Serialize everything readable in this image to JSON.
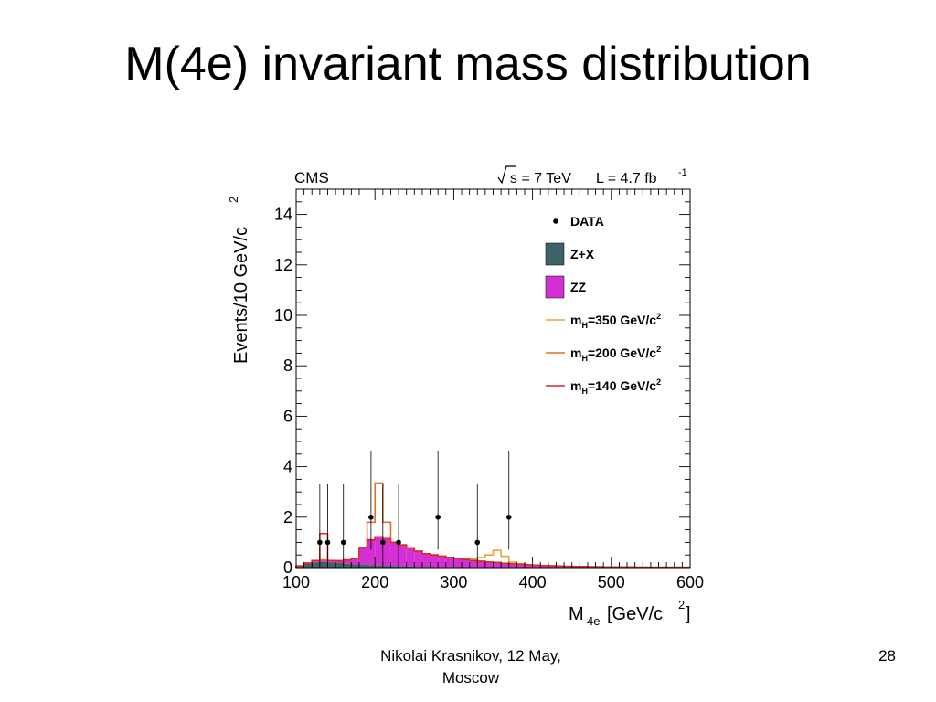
{
  "slide": {
    "title": "M(4e) invariant mass distribution",
    "footer_author_line1": "Nikolai Krasnikov, 12 May,",
    "footer_author_line2": "Moscow",
    "page_number": "28"
  },
  "chart_data": {
    "type": "bar",
    "experiment": "CMS",
    "energy": "s = 7 TeV",
    "lumi_prefix": "L = 4.7 fb",
    "lumi_exponent": "-1",
    "xlabel": "M",
    "xlabel_sub": "4e",
    "xlabel_unit": "[GeV/c",
    "xlabel_unit_exp": "2",
    "xlabel_unit_close": "]",
    "ylabel": "Events/10 GeV/c",
    "ylabel_exp": "2",
    "xlim": [
      100,
      600
    ],
    "ylim": [
      0,
      15
    ],
    "xticks": [
      100,
      200,
      300,
      400,
      500,
      600
    ],
    "yticks": [
      0,
      2,
      4,
      6,
      8,
      10,
      12,
      14
    ],
    "legend_position": "top-right",
    "colors": {
      "zx": "#3d6368",
      "zz": "#d42fd4",
      "mh350": "#e8a23a",
      "mh200": "#e0702a",
      "mh140": "#d42a2a",
      "data": "#000000"
    },
    "legend": [
      {
        "key": "data",
        "label": "DATA",
        "style": "marker"
      },
      {
        "key": "zx",
        "label": "Z+X",
        "style": "box"
      },
      {
        "key": "zz",
        "label": "ZZ",
        "style": "box"
      },
      {
        "key": "mh350",
        "label_main": "m",
        "label_sub": "H",
        "label_rest": "=350 GeV/c",
        "label_exp": "2",
        "style": "line"
      },
      {
        "key": "mh200",
        "label_main": "m",
        "label_sub": "H",
        "label_rest": "=200 GeV/c",
        "label_exp": "2",
        "style": "line"
      },
      {
        "key": "mh140",
        "label_main": "m",
        "label_sub": "H",
        "label_rest": "=140 GeV/c",
        "label_exp": "2",
        "style": "line"
      }
    ],
    "bin_edges": [
      100,
      110,
      120,
      130,
      140,
      150,
      160,
      170,
      180,
      190,
      200,
      210,
      220,
      230,
      240,
      250,
      260,
      270,
      280,
      290,
      300,
      310,
      320,
      330,
      340,
      350,
      360,
      370,
      380,
      390,
      400,
      410,
      420,
      430,
      440,
      450,
      460,
      470,
      480,
      490,
      500,
      510,
      520,
      530,
      540,
      550,
      560,
      570,
      580,
      590,
      600
    ],
    "zx_stack": [
      0.1,
      0.15,
      0.2,
      0.22,
      0.2,
      0.18,
      0.15,
      0.13,
      0.12,
      0.1,
      0.08,
      0.07,
      0.06,
      0.05,
      0.04,
      0.03,
      0.03,
      0.02,
      0.02,
      0.02,
      0.01,
      0.01,
      0.01,
      0.01,
      0.01,
      0.01,
      0.01,
      0.01,
      0.0,
      0.0,
      0.0,
      0.0,
      0.0,
      0.0,
      0.0,
      0.0,
      0.0,
      0.0,
      0.0,
      0.0,
      0.0,
      0.0,
      0.0,
      0.0,
      0.0,
      0.0,
      0.0,
      0.0,
      0.0,
      0.0
    ],
    "zz_stack": [
      0.05,
      0.18,
      0.28,
      0.3,
      0.28,
      0.27,
      0.3,
      0.36,
      0.8,
      1.1,
      1.22,
      1.15,
      1.0,
      0.9,
      0.78,
      0.65,
      0.55,
      0.5,
      0.45,
      0.4,
      0.36,
      0.32,
      0.28,
      0.25,
      0.22,
      0.2,
      0.17,
      0.15,
      0.13,
      0.11,
      0.1,
      0.08,
      0.07,
      0.06,
      0.05,
      0.04,
      0.04,
      0.03,
      0.03,
      0.02,
      0.02,
      0.02,
      0.02,
      0.01,
      0.01,
      0.01,
      0.01,
      0.01,
      0.01,
      0.01
    ],
    "mh350_stack": [
      0.05,
      0.18,
      0.28,
      0.3,
      0.28,
      0.27,
      0.3,
      0.36,
      0.8,
      1.1,
      1.22,
      1.15,
      1.0,
      0.9,
      0.78,
      0.65,
      0.55,
      0.5,
      0.45,
      0.4,
      0.36,
      0.34,
      0.34,
      0.4,
      0.5,
      0.68,
      0.45,
      0.22,
      0.15,
      0.11,
      0.1,
      0.08,
      0.07,
      0.06,
      0.05,
      0.04,
      0.04,
      0.03,
      0.03,
      0.02,
      0.02,
      0.02,
      0.02,
      0.01,
      0.01,
      0.01,
      0.01,
      0.01,
      0.01,
      0.01
    ],
    "mh200_stack": [
      0.05,
      0.18,
      0.28,
      0.3,
      0.28,
      0.27,
      0.3,
      0.36,
      0.8,
      1.8,
      3.35,
      1.8,
      1.0,
      0.9,
      0.78,
      0.65,
      0.55,
      0.5,
      0.45,
      0.4,
      0.36,
      0.32,
      0.28,
      0.25,
      0.22,
      0.2,
      0.17,
      0.15,
      0.13,
      0.11,
      0.1,
      0.08,
      0.07,
      0.06,
      0.05,
      0.04,
      0.04,
      0.03,
      0.03,
      0.02,
      0.02,
      0.02,
      0.02,
      0.01,
      0.01,
      0.01,
      0.01,
      0.01,
      0.01,
      0.01
    ],
    "mh140_stack": [
      0.05,
      0.18,
      0.28,
      1.35,
      0.28,
      0.27,
      0.3,
      0.36,
      0.8,
      1.1,
      1.22,
      1.15,
      1.0,
      0.9,
      0.78,
      0.65,
      0.55,
      0.5,
      0.45,
      0.4,
      0.36,
      0.32,
      0.28,
      0.25,
      0.22,
      0.2,
      0.17,
      0.15,
      0.13,
      0.11,
      0.1,
      0.08,
      0.07,
      0.06,
      0.05,
      0.04,
      0.04,
      0.03,
      0.03,
      0.02,
      0.02,
      0.02,
      0.02,
      0.01,
      0.01,
      0.01,
      0.01,
      0.01,
      0.01,
      0.01
    ],
    "data_points": [
      {
        "x": 130,
        "y": 1,
        "err_low": 0.83,
        "err_high": 2.3
      },
      {
        "x": 140,
        "y": 1,
        "err_low": 0.83,
        "err_high": 2.3
      },
      {
        "x": 160,
        "y": 1,
        "err_low": 0.83,
        "err_high": 2.3
      },
      {
        "x": 195,
        "y": 2,
        "err_low": 1.29,
        "err_high": 2.64
      },
      {
        "x": 210,
        "y": 1,
        "err_low": 0.83,
        "err_high": 2.3
      },
      {
        "x": 230,
        "y": 1,
        "err_low": 0.83,
        "err_high": 2.3
      },
      {
        "x": 280,
        "y": 2,
        "err_low": 1.29,
        "err_high": 2.64
      },
      {
        "x": 330,
        "y": 1,
        "err_low": 0.83,
        "err_high": 2.3
      },
      {
        "x": 370,
        "y": 2,
        "err_low": 1.29,
        "err_high": 2.64
      }
    ]
  }
}
